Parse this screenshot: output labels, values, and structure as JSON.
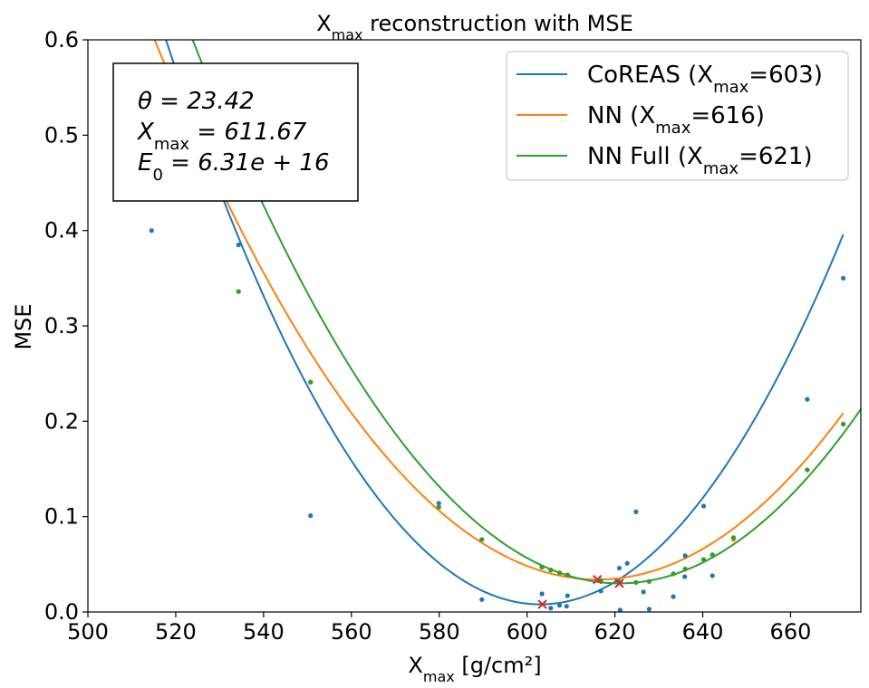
{
  "chart_data": {
    "type": "scatter",
    "title": "X_max reconstruction with MSE",
    "title_parts": {
      "base": "X",
      "sub": "max",
      "rest": " reconstruction with MSE"
    },
    "xlabel": "X_max [g/cm²]",
    "xlabel_parts": {
      "base": "X",
      "sub": "max",
      "rest": " [g/cm²]"
    },
    "ylabel": "MSE",
    "xlim": [
      500,
      676
    ],
    "ylim": [
      0,
      0.6
    ],
    "x_ticks": [
      500,
      520,
      540,
      560,
      580,
      600,
      620,
      640,
      660
    ],
    "y_ticks": [
      0.0,
      0.1,
      0.2,
      0.3,
      0.4,
      0.5,
      0.6
    ],
    "x_tick_labels": [
      "500",
      "520",
      "540",
      "560",
      "580",
      "600",
      "620",
      "640",
      "660"
    ],
    "y_tick_labels": [
      "0.0",
      "0.1",
      "0.2",
      "0.3",
      "0.4",
      "0.5",
      "0.6"
    ],
    "grid": false,
    "legend_position": "top-right",
    "annotation_box": {
      "position": "top-left",
      "lines": [
        "θ = 23.42",
        "X_max = 611.67",
        "E_0 = 6.31e + 16"
      ],
      "line_parts": [
        {
          "base": "θ",
          "sub": "",
          "rest": " = 23.42"
        },
        {
          "base": "X",
          "sub": "max",
          "rest": " = 611.67"
        },
        {
          "base": "E",
          "sub": "0",
          "rest": " = 6.31e + 16"
        }
      ]
    },
    "series": [
      {
        "name": "CoREAS (X_max=603)",
        "label_parts": {
          "pre": "CoREAS (",
          "base": "X",
          "sub": "max",
          "post": "=603)"
        },
        "color": "#1f77b4",
        "fit": {
          "type": "parabola",
          "a": 8.15e-05,
          "x0": 603,
          "c": 0.008,
          "x_range": [
            500,
            672
          ]
        },
        "minimum": {
          "x": 603.5,
          "y": 0.008
        },
        "points": [
          {
            "x": 514.5,
            "y": 0.4
          },
          {
            "x": 534.3,
            "y": 0.385
          },
          {
            "x": 550.7,
            "y": 0.101
          },
          {
            "x": 579.9,
            "y": 0.114
          },
          {
            "x": 589.7,
            "y": 0.013
          },
          {
            "x": 603.4,
            "y": 0.019
          },
          {
            "x": 605.4,
            "y": 0.004
          },
          {
            "x": 607.4,
            "y": 0.007
          },
          {
            "x": 609.0,
            "y": 0.006
          },
          {
            "x": 609.2,
            "y": 0.017
          },
          {
            "x": 616.8,
            "y": 0.022
          },
          {
            "x": 621.0,
            "y": 0.046
          },
          {
            "x": 621.2,
            "y": 0.002
          },
          {
            "x": 622.8,
            "y": 0.051
          },
          {
            "x": 624.8,
            "y": 0.105
          },
          {
            "x": 626.5,
            "y": 0.021
          },
          {
            "x": 627.8,
            "y": 0.003
          },
          {
            "x": 633.3,
            "y": 0.016
          },
          {
            "x": 636.0,
            "y": 0.059
          },
          {
            "x": 635.9,
            "y": 0.037
          },
          {
            "x": 640.2,
            "y": 0.111
          },
          {
            "x": 642.2,
            "y": 0.038
          },
          {
            "x": 663.8,
            "y": 0.223
          },
          {
            "x": 672.0,
            "y": 0.35
          }
        ]
      },
      {
        "name": "NN (X_max=616)",
        "label_parts": {
          "pre": "NN (",
          "base": "X",
          "sub": "max",
          "post": "=616)"
        },
        "color": "#ff7f0e",
        "fit": {
          "type": "parabola",
          "a": 5.57e-05,
          "x0": 616,
          "c": 0.034,
          "x_range": [
            500,
            672
          ]
        },
        "minimum": {
          "x": 616.0,
          "y": 0.034
        },
        "points": [
          {
            "x": 534.3,
            "y": 0.336
          },
          {
            "x": 550.7,
            "y": 0.241
          },
          {
            "x": 579.9,
            "y": 0.11
          },
          {
            "x": 589.7,
            "y": 0.076
          },
          {
            "x": 603.4,
            "y": 0.047
          },
          {
            "x": 605.4,
            "y": 0.044
          },
          {
            "x": 607.4,
            "y": 0.041
          },
          {
            "x": 609.2,
            "y": 0.039
          },
          {
            "x": 616.8,
            "y": 0.033
          },
          {
            "x": 621.2,
            "y": 0.031
          },
          {
            "x": 624.8,
            "y": 0.031
          },
          {
            "x": 627.8,
            "y": 0.032
          },
          {
            "x": 633.3,
            "y": 0.04
          },
          {
            "x": 636.0,
            "y": 0.045
          },
          {
            "x": 640.2,
            "y": 0.055
          },
          {
            "x": 642.2,
            "y": 0.06
          },
          {
            "x": 647.0,
            "y": 0.076
          },
          {
            "x": 663.8,
            "y": 0.149
          },
          {
            "x": 672.0,
            "y": 0.197
          }
        ]
      },
      {
        "name": "NN Full (X_max=621)",
        "label_parts": {
          "pre": "NN Full (",
          "base": "X",
          "sub": "max",
          "post": "=621)"
        },
        "color": "#2ca02c",
        "fit": {
          "type": "parabola",
          "a": 6.04e-05,
          "x0": 621,
          "c": 0.03,
          "x_range": [
            500,
            676
          ]
        },
        "minimum": {
          "x": 621.0,
          "y": 0.03
        },
        "points": [
          {
            "x": 534.3,
            "y": 0.336
          },
          {
            "x": 550.7,
            "y": 0.241
          },
          {
            "x": 579.9,
            "y": 0.11
          },
          {
            "x": 589.7,
            "y": 0.076
          },
          {
            "x": 603.4,
            "y": 0.047
          },
          {
            "x": 605.4,
            "y": 0.044
          },
          {
            "x": 607.4,
            "y": 0.041
          },
          {
            "x": 609.2,
            "y": 0.039
          },
          {
            "x": 616.8,
            "y": 0.033
          },
          {
            "x": 621.2,
            "y": 0.031
          },
          {
            "x": 624.8,
            "y": 0.031
          },
          {
            "x": 627.8,
            "y": 0.032
          },
          {
            "x": 633.3,
            "y": 0.04
          },
          {
            "x": 636.0,
            "y": 0.045
          },
          {
            "x": 640.2,
            "y": 0.055
          },
          {
            "x": 642.2,
            "y": 0.06
          },
          {
            "x": 647.0,
            "y": 0.078
          },
          {
            "x": 663.8,
            "y": 0.149
          },
          {
            "x": 672.0,
            "y": 0.197
          }
        ]
      }
    ],
    "minimum_marker": {
      "symbol": "x",
      "color": "#d62728"
    }
  }
}
